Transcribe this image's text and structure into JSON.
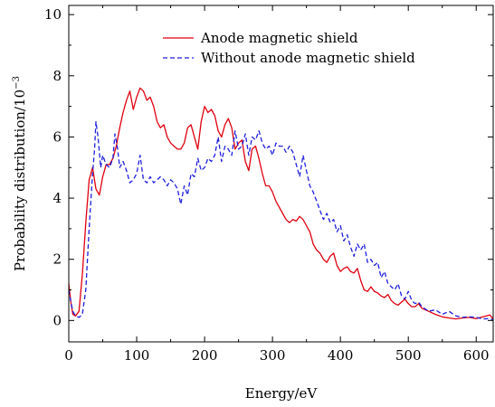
{
  "chart_data": {
    "type": "line",
    "xlabel": "Energy/eV",
    "ylabel": "Probability distribution/10",
    "ylabel_exponent": "−3",
    "xlim": [
      0,
      625
    ],
    "ylim": [
      -0.7,
      10.3
    ],
    "xticks": [
      0,
      100,
      200,
      300,
      400,
      500,
      600
    ],
    "yticks": [
      0,
      2,
      4,
      6,
      8,
      10
    ],
    "grid": false,
    "legend_position": "top-right",
    "series": [
      {
        "name": "Anode magnetic shield",
        "color": "#e0000f",
        "dash": "solid",
        "x": [
          0,
          3,
          6,
          10,
          15,
          20,
          25,
          30,
          35,
          40,
          45,
          50,
          55,
          60,
          65,
          70,
          75,
          80,
          85,
          90,
          95,
          100,
          105,
          110,
          115,
          120,
          125,
          130,
          135,
          140,
          145,
          150,
          155,
          160,
          165,
          170,
          175,
          180,
          185,
          190,
          195,
          200,
          205,
          210,
          215,
          220,
          225,
          230,
          235,
          240,
          245,
          250,
          255,
          260,
          265,
          270,
          275,
          280,
          285,
          290,
          295,
          300,
          305,
          310,
          315,
          320,
          325,
          330,
          335,
          340,
          345,
          350,
          355,
          360,
          365,
          370,
          375,
          380,
          385,
          390,
          395,
          400,
          405,
          410,
          415,
          420,
          425,
          430,
          435,
          440,
          445,
          450,
          455,
          460,
          465,
          470,
          475,
          480,
          485,
          490,
          495,
          500,
          505,
          510,
          515,
          520,
          530,
          540,
          550,
          560,
          570,
          580,
          590,
          600,
          610,
          615,
          620,
          625
        ],
        "y": [
          1.2,
          0.6,
          0.2,
          0.15,
          0.3,
          1.5,
          3.2,
          4.6,
          5.0,
          4.3,
          4.1,
          4.7,
          5.1,
          5.1,
          5.3,
          5.7,
          6.3,
          6.8,
          7.2,
          7.5,
          6.9,
          7.3,
          7.6,
          7.5,
          7.2,
          7.3,
          7.0,
          6.5,
          6.3,
          6.4,
          6.0,
          5.8,
          5.7,
          5.6,
          5.6,
          5.8,
          6.3,
          6.4,
          6.0,
          5.6,
          6.5,
          7.0,
          6.8,
          6.9,
          6.7,
          6.2,
          6.0,
          6.4,
          6.6,
          6.3,
          5.6,
          5.8,
          5.9,
          5.2,
          4.9,
          5.6,
          5.7,
          5.3,
          4.8,
          4.4,
          4.4,
          4.2,
          3.9,
          3.7,
          3.5,
          3.3,
          3.2,
          3.3,
          3.25,
          3.4,
          3.3,
          3.1,
          2.9,
          2.5,
          2.3,
          2.2,
          2.0,
          1.9,
          2.1,
          2.2,
          1.8,
          1.6,
          1.7,
          1.75,
          1.6,
          1.55,
          1.7,
          1.3,
          1.0,
          0.95,
          1.1,
          0.95,
          0.9,
          0.8,
          0.75,
          0.85,
          0.65,
          0.55,
          0.5,
          0.6,
          0.7,
          0.55,
          0.45,
          0.45,
          0.55,
          0.4,
          0.3,
          0.2,
          0.12,
          0.08,
          0.05,
          0.08,
          0.1,
          0.06,
          0.12,
          0.15,
          0.18,
          0.05
        ]
      },
      {
        "name": "Without anode magnetic shield",
        "color": "#1f1fdf",
        "dash": "dashed",
        "x": [
          0,
          3,
          6,
          10,
          15,
          20,
          25,
          30,
          35,
          38,
          40,
          43,
          47,
          50,
          55,
          60,
          65,
          68,
          72,
          75,
          80,
          85,
          90,
          95,
          100,
          105,
          110,
          115,
          120,
          125,
          130,
          135,
          140,
          145,
          150,
          155,
          160,
          165,
          170,
          175,
          180,
          185,
          190,
          195,
          200,
          205,
          210,
          215,
          220,
          225,
          230,
          235,
          240,
          245,
          250,
          255,
          260,
          265,
          270,
          275,
          280,
          285,
          290,
          295,
          300,
          305,
          310,
          315,
          320,
          325,
          330,
          335,
          340,
          345,
          350,
          355,
          360,
          365,
          370,
          375,
          380,
          385,
          390,
          395,
          400,
          405,
          410,
          415,
          420,
          425,
          430,
          435,
          440,
          445,
          450,
          455,
          460,
          465,
          470,
          475,
          480,
          485,
          490,
          495,
          500,
          505,
          510,
          515,
          520,
          530,
          540,
          550,
          560,
          570,
          580,
          590,
          600,
          610,
          620,
          625
        ],
        "y": [
          1.0,
          0.6,
          0.3,
          0.15,
          0.1,
          0.2,
          1.0,
          3.0,
          4.8,
          5.6,
          6.5,
          6.0,
          5.0,
          5.4,
          5.1,
          5.0,
          5.3,
          6.1,
          5.6,
          5.0,
          5.2,
          4.9,
          4.5,
          4.6,
          4.8,
          5.4,
          4.6,
          4.5,
          4.7,
          4.5,
          4.6,
          4.7,
          4.6,
          4.4,
          4.6,
          4.5,
          4.3,
          3.8,
          4.4,
          4.1,
          4.8,
          4.7,
          5.3,
          4.9,
          5.0,
          5.3,
          5.2,
          5.4,
          6.0,
          5.2,
          5.7,
          5.6,
          5.4,
          6.2,
          5.6,
          5.7,
          6.1,
          5.4,
          6.0,
          5.9,
          6.2,
          5.8,
          5.6,
          5.7,
          5.4,
          5.8,
          5.7,
          5.7,
          5.5,
          5.7,
          5.5,
          5.1,
          4.7,
          5.4,
          4.9,
          4.4,
          4.2,
          3.9,
          3.6,
          3.3,
          3.5,
          3.2,
          3.3,
          2.9,
          3.1,
          2.6,
          2.8,
          2.4,
          2.1,
          2.5,
          2.3,
          2.5,
          1.9,
          2.0,
          1.8,
          1.9,
          1.4,
          1.6,
          1.2,
          1.1,
          1.0,
          1.2,
          0.8,
          0.7,
          0.95,
          0.65,
          0.55,
          0.6,
          0.45,
          0.3,
          0.35,
          0.2,
          0.3,
          0.15,
          0.1,
          0.12,
          0.1,
          0.05,
          0.06,
          0.02
        ]
      }
    ]
  }
}
